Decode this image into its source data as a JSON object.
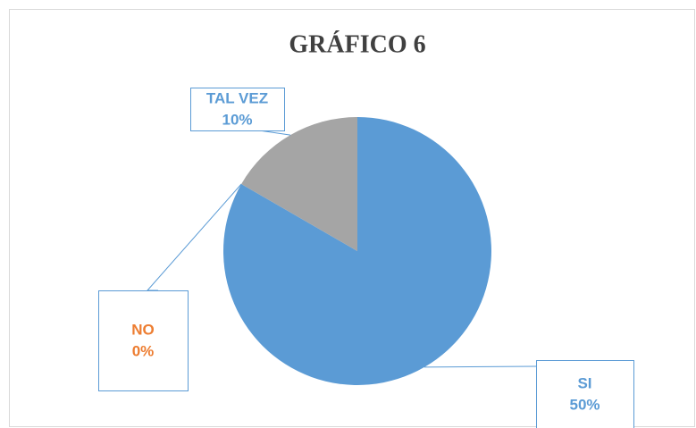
{
  "chart_data": {
    "type": "pie",
    "title": "GRÁFICO 6",
    "categories": [
      "SI",
      "NO",
      "TAL VEZ"
    ],
    "values": [
      50,
      0,
      10
    ],
    "value_labels": [
      "50%",
      "0%",
      "10%"
    ],
    "colors": [
      "#5b9bd5",
      "#ed7d31",
      "#a5a5a5"
    ],
    "label_colors": [
      "#5b9bd5",
      "#ed7d31",
      "#5b9bd5"
    ]
  }
}
